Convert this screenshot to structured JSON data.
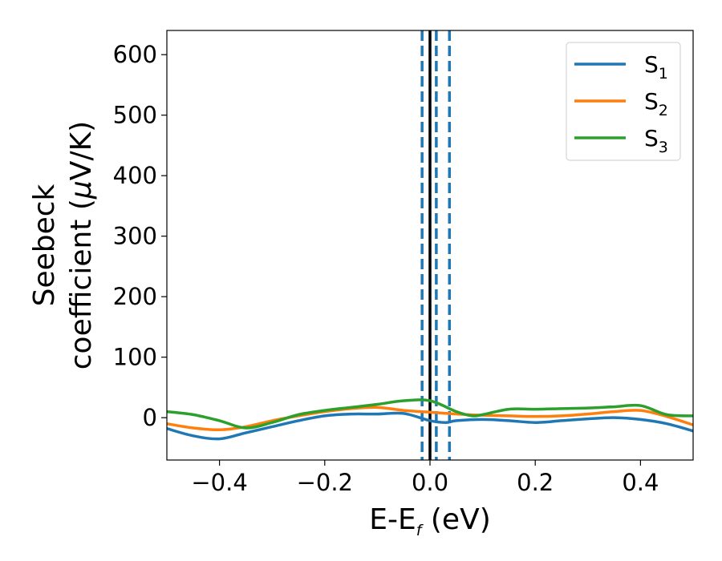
{
  "chart_data": {
    "type": "line",
    "xlabel": {
      "main": "E-E",
      "sub": "f",
      "tail": " (eV)"
    },
    "ylabel": {
      "line1": "Seebeck",
      "line2_pre": "coefficient  (",
      "mu": "μ",
      "line2_post": "V/K)"
    },
    "xlim": [
      -0.5,
      0.5
    ],
    "ylim": [
      -70,
      640
    ],
    "xticks": [
      -0.4,
      -0.2,
      0.0,
      0.2,
      0.4
    ],
    "xtick_labels": [
      "−0.4",
      "−0.2",
      "0.0",
      "0.2",
      "0.4"
    ],
    "yticks": [
      0,
      100,
      200,
      300,
      400,
      500,
      600
    ],
    "ytick_labels": [
      "0",
      "100",
      "200",
      "300",
      "400",
      "500",
      "600"
    ],
    "legend_position": "top-right",
    "grid": false,
    "vlines": [
      {
        "x": 0.0,
        "style": "solid",
        "color": "#000000"
      },
      {
        "x": -0.015,
        "style": "dashed",
        "color": "#1f77b4"
      },
      {
        "x": 0.012,
        "style": "dashed",
        "color": "#1f77b4"
      },
      {
        "x": 0.037,
        "style": "dashed",
        "color": "#1f77b4"
      }
    ],
    "series": [
      {
        "name": "S",
        "sub": "1",
        "color": "#1f77b4",
        "x": [
          -0.5,
          -0.45,
          -0.4,
          -0.35,
          -0.3,
          -0.25,
          -0.2,
          -0.15,
          -0.1,
          -0.05,
          0.0,
          0.03,
          0.05,
          0.1,
          0.15,
          0.2,
          0.25,
          0.3,
          0.35,
          0.4,
          0.45,
          0.5
        ],
        "y": [
          -18,
          -30,
          -35,
          -25,
          -15,
          -5,
          3,
          6,
          6,
          7,
          -5,
          -8,
          -5,
          -3,
          -5,
          -8,
          -5,
          -2,
          0,
          -3,
          -10,
          -22
        ]
      },
      {
        "name": "S",
        "sub": "2",
        "color": "#ff7f0e",
        "x": [
          -0.5,
          -0.45,
          -0.4,
          -0.35,
          -0.3,
          -0.25,
          -0.2,
          -0.15,
          -0.1,
          -0.05,
          0.0,
          0.05,
          0.1,
          0.15,
          0.2,
          0.25,
          0.3,
          0.35,
          0.4,
          0.45,
          0.5
        ],
        "y": [
          -10,
          -17,
          -20,
          -15,
          -5,
          3,
          10,
          15,
          17,
          12,
          9,
          6,
          4,
          3,
          2,
          3,
          6,
          10,
          12,
          2,
          -12
        ]
      },
      {
        "name": "S",
        "sub": "3",
        "color": "#2ca02c",
        "x": [
          -0.5,
          -0.45,
          -0.4,
          -0.35,
          -0.3,
          -0.25,
          -0.2,
          -0.15,
          -0.1,
          -0.05,
          0.0,
          0.05,
          0.08,
          0.1,
          0.15,
          0.2,
          0.25,
          0.3,
          0.35,
          0.4,
          0.45,
          0.5
        ],
        "y": [
          10,
          5,
          -5,
          -17,
          -8,
          5,
          12,
          17,
          22,
          28,
          28,
          10,
          3,
          5,
          14,
          14,
          15,
          16,
          18,
          20,
          5,
          3
        ]
      }
    ]
  }
}
